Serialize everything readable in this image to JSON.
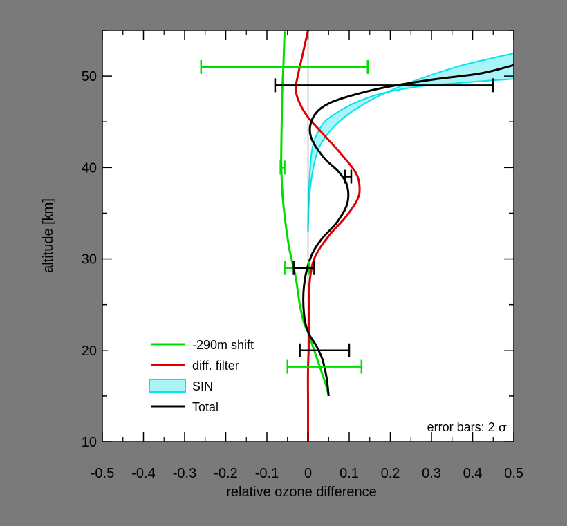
{
  "chart_data": {
    "type": "line",
    "xlabel": "relative ozone difference",
    "ylabel": "altitude [km]",
    "xlim": [
      -0.5,
      0.5
    ],
    "ylim": [
      10,
      55
    ],
    "x_ticks": [
      -0.5,
      -0.4,
      -0.3,
      -0.2,
      -0.1,
      0,
      0.1,
      0.2,
      0.3,
      0.4,
      0.5
    ],
    "x_tick_labels": [
      "-0.5",
      "-0.4",
      "-0.3",
      "-0.2",
      "-0.1",
      "0",
      "0.1",
      "0.2",
      "0.3",
      "0.4",
      "0.5"
    ],
    "y_ticks": [
      10,
      20,
      30,
      40,
      50
    ],
    "y_tick_labels": [
      "10",
      "20",
      "30",
      "40",
      "50"
    ],
    "annotation": {
      "text_prefix": "error bars: 2 ",
      "symbol": "σ"
    },
    "legend": {
      "position": "lower-left",
      "entries": [
        {
          "label": "-290m shift",
          "color": "#00dd00",
          "kind": "line"
        },
        {
          "label": "diff. filter",
          "color": "#dd0000",
          "kind": "line"
        },
        {
          "label": "SIN",
          "color": "#00e5ee",
          "fill": "#a8f4f6",
          "kind": "band"
        },
        {
          "label": "Total",
          "color": "#000000",
          "kind": "line"
        }
      ]
    },
    "series": [
      {
        "name": "-290m shift",
        "color": "#00dd00",
        "points": [
          [
            -0.057,
            54.9
          ],
          [
            -0.06,
            51
          ],
          [
            -0.063,
            48
          ],
          [
            -0.064,
            45
          ],
          [
            -0.065,
            42
          ],
          [
            -0.065,
            40
          ],
          [
            -0.062,
            37
          ],
          [
            -0.055,
            34
          ],
          [
            -0.045,
            31
          ],
          [
            -0.03,
            28
          ],
          [
            -0.02,
            25
          ],
          [
            -0.01,
            23
          ],
          [
            0,
            22
          ],
          [
            0.015,
            20
          ],
          [
            0.03,
            18
          ],
          [
            0.045,
            16
          ],
          [
            0.05,
            15
          ]
        ],
        "error_bars": [
          {
            "y": 51,
            "xmin": -0.26,
            "xmax": 0.145
          },
          {
            "y": 40,
            "xmin": -0.067,
            "xmax": -0.057
          },
          {
            "y": 29,
            "xmin": -0.057,
            "xmax": 0.003
          },
          {
            "y": 18.2,
            "xmin": -0.05,
            "xmax": 0.13
          }
        ]
      },
      {
        "name": "diff. filter",
        "color": "#dd0000",
        "points": [
          [
            0,
            55
          ],
          [
            -0.01,
            53
          ],
          [
            -0.025,
            50
          ],
          [
            -0.03,
            48.5
          ],
          [
            -0.02,
            47
          ],
          [
            0,
            45.5
          ],
          [
            0.04,
            43.5
          ],
          [
            0.08,
            41.5
          ],
          [
            0.115,
            39.5
          ],
          [
            0.125,
            38
          ],
          [
            0.12,
            36.5
          ],
          [
            0.09,
            34.5
          ],
          [
            0.05,
            32.5
          ],
          [
            0.015,
            30
          ],
          [
            0.003,
            27
          ],
          [
            0.003,
            24
          ],
          [
            0.003,
            22
          ],
          [
            0,
            18
          ],
          [
            0,
            14
          ],
          [
            0,
            10
          ]
        ]
      },
      {
        "name": "SIN",
        "color": "#00e5ee",
        "fill": "#a8f4f6",
        "upper": [
          [
            0,
            33
          ],
          [
            0.002,
            36
          ],
          [
            0.006,
            38
          ],
          [
            0.013,
            40
          ],
          [
            0.025,
            42
          ],
          [
            0.045,
            43.5
          ],
          [
            0.075,
            45
          ],
          [
            0.12,
            46.5
          ],
          [
            0.18,
            48
          ],
          [
            0.26,
            49.5
          ],
          [
            0.36,
            51
          ],
          [
            0.45,
            52
          ],
          [
            0.5,
            52.5
          ]
        ],
        "lower": [
          [
            0,
            33
          ],
          [
            0.001,
            36
          ],
          [
            0.003,
            38
          ],
          [
            0.005,
            40
          ],
          [
            0.01,
            42
          ],
          [
            0.02,
            43.5
          ],
          [
            0.04,
            45
          ],
          [
            0.07,
            46
          ],
          [
            0.11,
            47
          ],
          [
            0.17,
            48
          ],
          [
            0.26,
            48.8
          ],
          [
            0.38,
            49.3
          ],
          [
            0.5,
            49.7
          ]
        ]
      },
      {
        "name": "Total",
        "color": "#000000",
        "points": [
          [
            0.5,
            51.2
          ],
          [
            0.42,
            50.3
          ],
          [
            0.3,
            49.6
          ],
          [
            0.18,
            48.7
          ],
          [
            0.1,
            47.8
          ],
          [
            0.05,
            47
          ],
          [
            0.02,
            46
          ],
          [
            0.005,
            44.5
          ],
          [
            0.01,
            43
          ],
          [
            0.04,
            41
          ],
          [
            0.075,
            39.5
          ],
          [
            0.095,
            38
          ],
          [
            0.095,
            36
          ],
          [
            0.07,
            34
          ],
          [
            0.03,
            32
          ],
          [
            0.005,
            30
          ],
          [
            -0.01,
            27
          ],
          [
            -0.01,
            24
          ],
          [
            0,
            22
          ],
          [
            0.02,
            20.5
          ],
          [
            0.035,
            19
          ],
          [
            0.045,
            17
          ],
          [
            0.05,
            15
          ]
        ],
        "error_bars": [
          {
            "y": 49,
            "xmin": -0.08,
            "xmax": 0.45
          },
          {
            "y": 39,
            "xmin": 0.09,
            "xmax": 0.105
          },
          {
            "y": 29,
            "xmin": -0.035,
            "xmax": 0.015
          },
          {
            "y": 20,
            "xmin": -0.02,
            "xmax": 0.1
          }
        ]
      }
    ]
  }
}
